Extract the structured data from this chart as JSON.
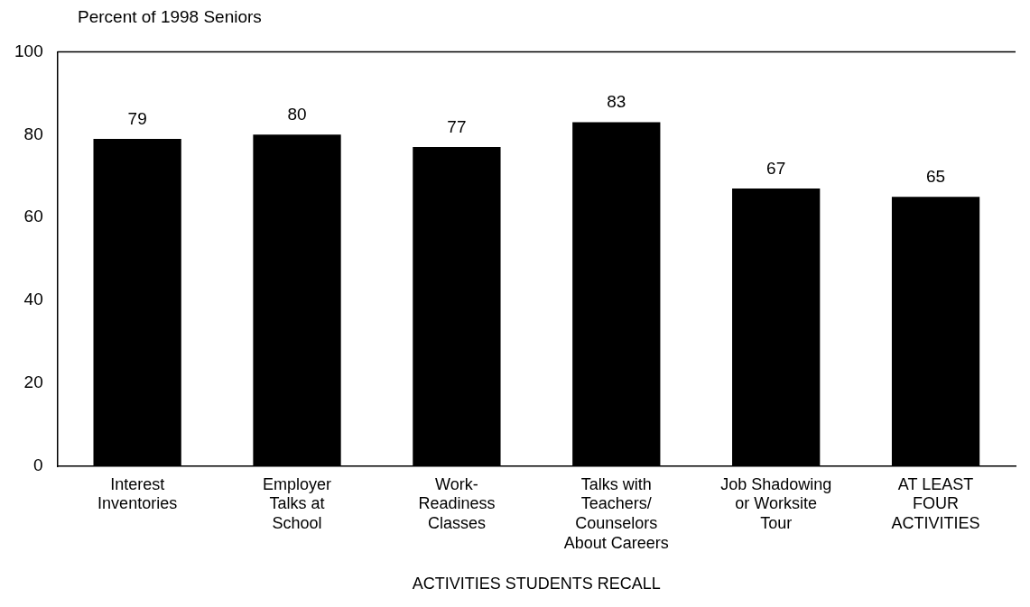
{
  "chart_data": {
    "type": "bar",
    "ylabel": "Percent of 1998 Seniors",
    "xlabel": "ACTIVITIES STUDENTS RECALL",
    "categories": [
      "Interest\nInventories",
      "Employer\nTalks at\nSchool",
      "Work-\nReadiness\nClasses",
      "Talks with\nTeachers/\nCounselors\nAbout Careers",
      "Job Shadowing\nor Worksite\nTour",
      "AT LEAST\nFOUR\nACTIVITIES"
    ],
    "values": [
      79,
      80,
      77,
      83,
      67,
      65
    ],
    "color": "#000000",
    "ylim": [
      0,
      100
    ],
    "yticks": [
      0,
      20,
      40,
      60,
      80,
      100
    ],
    "grid": false,
    "data_labels": true
  }
}
